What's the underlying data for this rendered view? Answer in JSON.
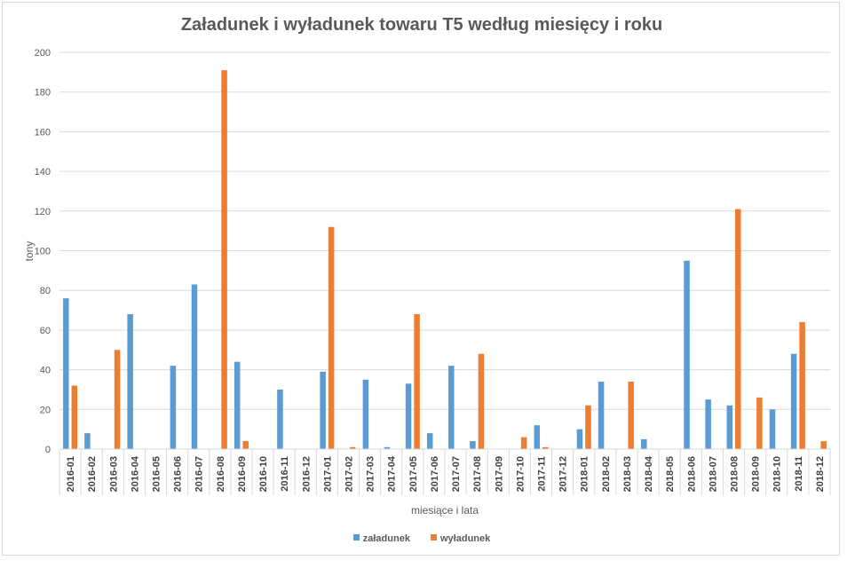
{
  "chart_data": {
    "type": "bar",
    "title": "Załadunek i wyładunek towaru T5 według miesięcy i roku",
    "xlabel": "miesiące i lata",
    "ylabel": "tony",
    "ylim": [
      0,
      200
    ],
    "yticks": [
      0,
      20,
      40,
      60,
      80,
      100,
      120,
      140,
      160,
      180,
      200
    ],
    "grid": true,
    "legend_position": "bottom",
    "categories": [
      "2016-01",
      "2016-02",
      "2016-03",
      "2016-04",
      "2016-05",
      "2016-06",
      "2016-07",
      "2016-08",
      "2016-09",
      "2016-10",
      "2016-11",
      "2016-12",
      "2017-01",
      "2017-02",
      "2017-03",
      "2017-04",
      "2017-05",
      "2017-06",
      "2017-07",
      "2017-08",
      "2017-09",
      "2017-10",
      "2017-11",
      "2017-12",
      "2018-01",
      "2018-02",
      "2018-03",
      "2018-04",
      "2018-05",
      "2018-06",
      "2018-07",
      "2018-08",
      "2018-09",
      "2018-10",
      "2018-11",
      "2018-12"
    ],
    "series": [
      {
        "name": "załadunek",
        "color": "#5b9bd5",
        "values": [
          76,
          8,
          0,
          68,
          0,
          42,
          83,
          0,
          44,
          0,
          30,
          0,
          39,
          0,
          35,
          1,
          33,
          8,
          42,
          4,
          0,
          0,
          12,
          0,
          10,
          34,
          0,
          5,
          0,
          95,
          25,
          22,
          0,
          20,
          48,
          0
        ]
      },
      {
        "name": "wyładunek",
        "color": "#ed7d31",
        "values": [
          32,
          0,
          50,
          0,
          0,
          0,
          0,
          191,
          4,
          0,
          0,
          0,
          112,
          1,
          0,
          0,
          68,
          0,
          0,
          48,
          0,
          6,
          1,
          0,
          22,
          0,
          34,
          0,
          0,
          0,
          0,
          121,
          26,
          0,
          64,
          4
        ]
      }
    ]
  },
  "legend": {
    "series_1": "załadunek",
    "series_2": "wyładunek"
  }
}
